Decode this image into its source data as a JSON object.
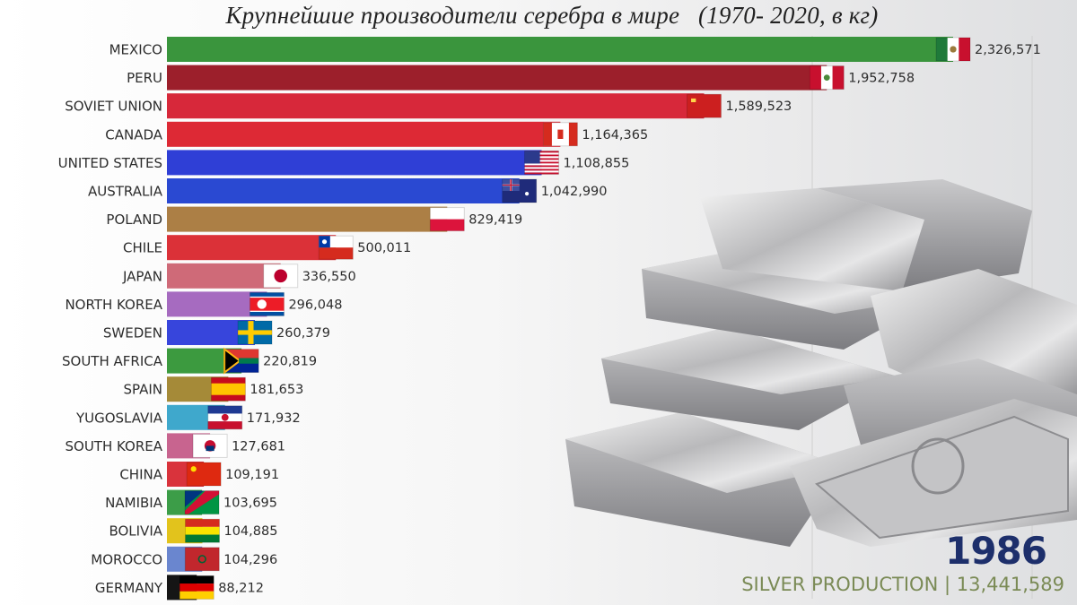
{
  "title": "Крупнейшие производители серебра в мире   (1970- 2020, в кг)",
  "year": "1986",
  "footer": {
    "label": "SILVER PRODUCTION",
    "separator": "|",
    "total": "13,441,589"
  },
  "chart_data": {
    "type": "bar",
    "orientation": "horizontal",
    "title": "Крупнейшие производители серебра в мире   (1970- 2020, в кг)",
    "xlim": [
      0,
      2326571
    ],
    "grid": true,
    "categories": [
      "MEXICO",
      "PERU",
      "SOVIET UNION",
      "CANADA",
      "UNITED STATES",
      "AUSTRALIA",
      "POLAND",
      "CHILE",
      "JAPAN",
      "NORTH KOREA",
      "SWEDEN",
      "SOUTH AFRICA",
      "SPAIN",
      "YUGOSLAVIA",
      "SOUTH KOREA",
      "CHINA",
      "NAMIBIA",
      "BOLIVIA",
      "MOROCCO",
      "GERMANY"
    ],
    "values": [
      2326571,
      1952758,
      1589523,
      1164365,
      1108855,
      1042990,
      829419,
      500011,
      336550,
      296048,
      260379,
      220819,
      181653,
      171932,
      127681,
      109191,
      103695,
      104885,
      104296,
      88212
    ],
    "value_labels": [
      "2,326,571",
      "1,952,758",
      "1,589,523",
      "1,164,365",
      "1,108,855",
      "1,042,990",
      "829,419",
      "500,011",
      "336,550",
      "296,048",
      "260,379",
      "220,819",
      "181,653",
      "171,932",
      "127,681",
      "109,191",
      "103,695",
      "104,885",
      "104,296",
      "88,212"
    ],
    "colors": [
      "#3a953d",
      "#9c1f2b",
      "#d7283a",
      "#dd2935",
      "#2f3fd6",
      "#2a49d2",
      "#ac7f45",
      "#db3138",
      "#cf6a78",
      "#a66bc0",
      "#3745dc",
      "#3c9a3f",
      "#a58a38",
      "#3fa8cc",
      "#c8648f",
      "#d9333c",
      "#3c9d48",
      "#e2c31c",
      "#6a86cf",
      "#151515"
    ],
    "flags": [
      "mexico-flag-icon",
      "peru-flag-icon",
      "soviet-union-flag-icon",
      "canada-flag-icon",
      "united-states-flag-icon",
      "australia-flag-icon",
      "poland-flag-icon",
      "chile-flag-icon",
      "japan-flag-icon",
      "north-korea-flag-icon",
      "sweden-flag-icon",
      "south-africa-flag-icon",
      "spain-flag-icon",
      "yugoslavia-flag-icon",
      "south-korea-flag-icon",
      "china-flag-icon",
      "namibia-flag-icon",
      "bolivia-flag-icon",
      "morocco-flag-icon",
      "germany-flag-icon"
    ]
  }
}
